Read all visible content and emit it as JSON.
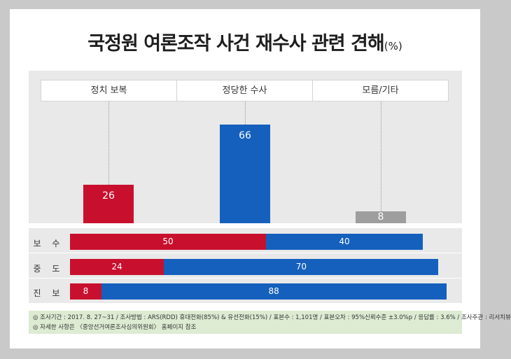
{
  "title": "국정원 여론조작 사건 재수사 관련 견해",
  "title_unit": "(%)",
  "colors": {
    "conservative_red": "#c8102e",
    "blue": "#1560bd",
    "gray": "#9e9e9e"
  },
  "chart_data": [
    {
      "type": "bar",
      "categories": [
        "정치 보복",
        "정당한 수사",
        "모름/기타"
      ],
      "values": [
        26,
        66,
        8
      ],
      "ylim": [
        0,
        100
      ]
    },
    {
      "type": "bar",
      "stacked": true,
      "orientation": "horizontal",
      "categories": [
        "보 수",
        "중 도",
        "진 보"
      ],
      "series": [
        {
          "values": [
            50,
            24,
            8
          ],
          "color": "#c8102e"
        },
        {
          "values": [
            40,
            70,
            88
          ],
          "color": "#1560bd"
        }
      ],
      "xlim": [
        0,
        100
      ]
    }
  ],
  "footnote": {
    "line1": "◎ 조사기간 : 2017. 8. 27~31 / 조사방법 : ARS(RDD) 휴대전화(85%) & 유선전화(15%) / 표본수 : 1,101명 / 표본오차 : 95%신뢰수준 ±3.0%p / 응답률 : 3.6% / 조사주관 : 리서치뷰",
    "line2": "◎ 자세한 사항은 〈중앙선거여론조사심의위원회〉 홈페이지 참조"
  }
}
